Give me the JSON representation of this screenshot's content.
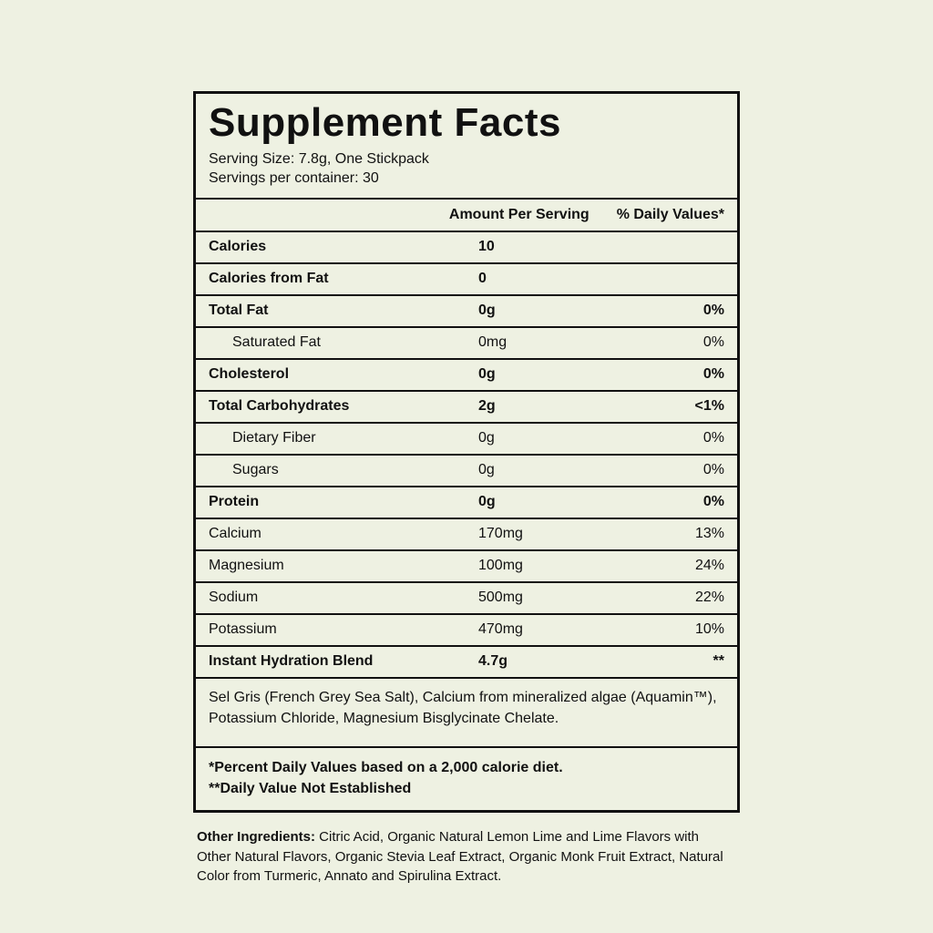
{
  "panel": {
    "title": "Supplement Facts",
    "serving_size": "Serving Size: 7.8g, One Stickpack",
    "servings_per_container": "Servings per container: 30",
    "header": {
      "amount": "Amount Per Serving",
      "daily_values": "% Daily Values*"
    },
    "rows": [
      {
        "label": "Calories",
        "amount": "10",
        "dv": "",
        "bold": true,
        "indent": false
      },
      {
        "label": "Calories from Fat",
        "amount": "0",
        "dv": "",
        "bold": true,
        "indent": false
      },
      {
        "label": "Total Fat",
        "amount": "0g",
        "dv": "0%",
        "bold": true,
        "indent": false
      },
      {
        "label": "Saturated Fat",
        "amount": "0mg",
        "dv": "0%",
        "bold": false,
        "indent": true
      },
      {
        "label": "Cholesterol",
        "amount": "0g",
        "dv": "0%",
        "bold": true,
        "indent": false
      },
      {
        "label": "Total Carbohydrates",
        "amount": "2g",
        "dv": "<1%",
        "bold": true,
        "indent": false
      },
      {
        "label": "Dietary Fiber",
        "amount": "0g",
        "dv": "0%",
        "bold": false,
        "indent": true
      },
      {
        "label": "Sugars",
        "amount": "0g",
        "dv": "0%",
        "bold": false,
        "indent": true
      },
      {
        "label": "Protein",
        "amount": "0g",
        "dv": "0%",
        "bold": true,
        "indent": false
      },
      {
        "label": "Calcium",
        "amount": "170mg",
        "dv": "13%",
        "bold": false,
        "indent": false
      },
      {
        "label": "Magnesium",
        "amount": "100mg",
        "dv": "24%",
        "bold": false,
        "indent": false
      },
      {
        "label": "Sodium",
        "amount": "500mg",
        "dv": "22%",
        "bold": false,
        "indent": false
      },
      {
        "label": "Potassium",
        "amount": "470mg",
        "dv": "10%",
        "bold": false,
        "indent": false
      },
      {
        "label": "Instant Hydration Blend",
        "amount": "4.7g",
        "dv": "**",
        "bold": true,
        "indent": false
      }
    ],
    "blend_note": "Sel Gris (French Grey Sea Salt), Calcium from mineralized algae (Aquamin™), Potassium Chloride, Magnesium Bisglycinate Chelate.",
    "footnotes": {
      "line1": "*Percent Daily Values based on a 2,000 calorie diet.",
      "line2": "**Daily Value Not Established"
    },
    "other_ingredients": {
      "label": "Other Ingredients:",
      "text": " Citric Acid, Organic Natural Lemon Lime and Lime Flavors with Other Natural Flavors, Organic Stevia Leaf Extract, Organic Monk Fruit Extract, Natural Color from Turmeric, Annato and Spirulina Extract."
    },
    "colors": {
      "background": "#eef1e2",
      "border": "#111111",
      "text": "#111111"
    }
  }
}
